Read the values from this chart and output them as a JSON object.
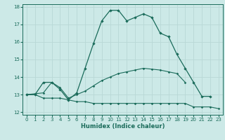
{
  "title": "",
  "xlabel": "Humidex (Indice chaleur)",
  "bg_color": "#cce9e7",
  "grid_color": "#b8d8d6",
  "line_color": "#1a6b5a",
  "x": [
    0,
    1,
    2,
    3,
    4,
    5,
    6,
    7,
    8,
    9,
    10,
    11,
    12,
    13,
    14,
    15,
    16,
    17,
    18,
    19,
    20,
    21,
    22,
    23
  ],
  "line1": [
    13.0,
    13.0,
    13.7,
    13.7,
    13.3,
    12.7,
    13.1,
    14.5,
    15.9,
    17.2,
    17.8,
    17.8,
    17.2,
    17.4,
    17.6,
    17.4,
    16.5,
    16.3,
    15.3,
    14.5,
    13.7,
    12.9,
    12.9,
    null
  ],
  "line2_full": [
    13.0,
    13.05,
    13.1,
    13.7,
    13.4,
    12.8,
    13.0,
    13.2,
    13.5,
    13.8,
    14.0,
    14.2,
    14.3,
    14.4,
    14.5,
    14.45,
    14.4,
    14.3,
    14.2,
    13.7,
    null,
    null,
    null,
    null
  ],
  "line3_full": [
    13.0,
    13.0,
    12.8,
    12.8,
    12.8,
    12.7,
    12.6,
    12.6,
    12.5,
    12.5,
    12.5,
    12.5,
    12.5,
    12.5,
    12.5,
    12.5,
    12.5,
    12.5,
    12.5,
    12.5,
    12.3,
    12.3,
    12.3,
    12.2
  ],
  "ylim": [
    11.85,
    18.15
  ],
  "xlim": [
    -0.5,
    23.5
  ],
  "yticks": [
    12,
    13,
    14,
    15,
    16,
    17,
    18
  ],
  "xticks": [
    0,
    1,
    2,
    3,
    4,
    5,
    6,
    7,
    8,
    9,
    10,
    11,
    12,
    13,
    14,
    15,
    16,
    17,
    18,
    19,
    20,
    21,
    22,
    23
  ],
  "xlabel_fontsize": 6.0,
  "tick_fontsize": 5.0,
  "lw1": 0.9,
  "lw2": 0.8,
  "ms1": 2.2,
  "ms2": 1.8
}
